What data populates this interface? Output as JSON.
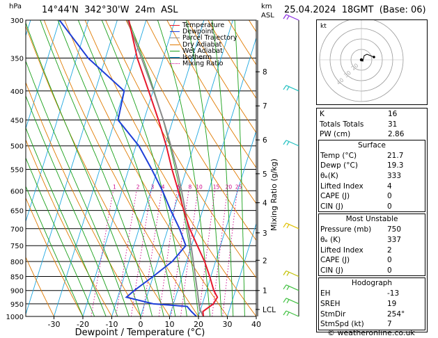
{
  "header": {
    "location": "14°44'N  342°30'W  24m  ASL",
    "datetime": "25.04.2024  18GMT  (Base: 06)",
    "pressure_unit": "hPa",
    "km_label": "km",
    "asl_label": "ASL"
  },
  "legend": [
    {
      "label": "Temperature",
      "color": "#e8182c"
    },
    {
      "label": "Dewpoint",
      "color": "#1f3fd8"
    },
    {
      "label": "Parcel Trajectory",
      "color": "#8a8a8a"
    },
    {
      "label": "Dry Adiabat",
      "color": "#e07a00"
    },
    {
      "label": "Wet Adiabat",
      "color": "#19a019"
    },
    {
      "label": "Isotherm",
      "color": "#1fa8e0"
    },
    {
      "label": "Mixing Ratio",
      "color": "#cc0088"
    }
  ],
  "chart_data": {
    "type": "line",
    "subtype": "skew-T log-P thermodynamic diagram",
    "xlabel": "Dewpoint / Temperature (°C)",
    "ylabel": "hPa",
    "right_axis_label": "Mixing Ratio (g/kg)",
    "x_ticks": [
      -30,
      -20,
      -10,
      0,
      10,
      20,
      30,
      40
    ],
    "pressure_levels": [
      300,
      350,
      400,
      450,
      500,
      550,
      600,
      650,
      700,
      750,
      800,
      850,
      900,
      950,
      1000
    ],
    "km_ticks": [
      {
        "label": "8",
        "p": 370
      },
      {
        "label": "7",
        "p": 425
      },
      {
        "label": "6",
        "p": 488
      },
      {
        "label": "5",
        "p": 560
      },
      {
        "label": "4",
        "p": 630
      },
      {
        "label": "3",
        "p": 712
      },
      {
        "label": "2",
        "p": 796
      },
      {
        "label": "1",
        "p": 900
      },
      {
        "label": "LCL",
        "p": 972
      }
    ],
    "mixing_ratio_labels": [
      "1",
      "2",
      "3",
      "4",
      "6",
      "8",
      "10",
      "15",
      "20",
      "25"
    ],
    "mixing_ratio_values": [
      1,
      2,
      3,
      4,
      6,
      8,
      10,
      15,
      20,
      25
    ],
    "temperature": [
      {
        "p": 1000,
        "t": 21.7
      },
      {
        "p": 980,
        "t": 21.0
      },
      {
        "p": 950,
        "t": 23.8
      },
      {
        "p": 925,
        "t": 24.5
      },
      {
        "p": 900,
        "t": 22.5
      },
      {
        "p": 850,
        "t": 19.6
      },
      {
        "p": 800,
        "t": 16.2
      },
      {
        "p": 750,
        "t": 12.0
      },
      {
        "p": 700,
        "t": 7.5
      },
      {
        "p": 650,
        "t": 3.5
      },
      {
        "p": 600,
        "t": -0.5
      },
      {
        "p": 550,
        "t": -5.0
      },
      {
        "p": 500,
        "t": -9.5
      },
      {
        "p": 450,
        "t": -15.0
      },
      {
        "p": 400,
        "t": -21.5
      },
      {
        "p": 350,
        "t": -29.0
      },
      {
        "p": 300,
        "t": -36.0
      }
    ],
    "dewpoint": [
      {
        "p": 1000,
        "t": 19.3
      },
      {
        "p": 980,
        "t": 17.0
      },
      {
        "p": 960,
        "t": 15.0
      },
      {
        "p": 950,
        "t": 3.0
      },
      {
        "p": 925,
        "t": -7.0
      },
      {
        "p": 900,
        "t": -5.0
      },
      {
        "p": 850,
        "t": 0.0
      },
      {
        "p": 800,
        "t": 5.0
      },
      {
        "p": 750,
        "t": 8.0
      },
      {
        "p": 700,
        "t": 4.0
      },
      {
        "p": 650,
        "t": -1.0
      },
      {
        "p": 600,
        "t": -6.0
      },
      {
        "p": 550,
        "t": -12.0
      },
      {
        "p": 500,
        "t": -19.0
      },
      {
        "p": 450,
        "t": -29.0
      },
      {
        "p": 400,
        "t": -30.0
      },
      {
        "p": 350,
        "t": -46.0
      },
      {
        "p": 300,
        "t": -60.0
      }
    ],
    "parcel": [
      {
        "p": 1000,
        "t": 21.7
      },
      {
        "p": 970,
        "t": 19.6
      },
      {
        "p": 900,
        "t": 16.8
      },
      {
        "p": 850,
        "t": 14.6
      },
      {
        "p": 800,
        "t": 12.3
      },
      {
        "p": 750,
        "t": 9.8
      },
      {
        "p": 700,
        "t": 7.0
      },
      {
        "p": 650,
        "t": 4.0
      },
      {
        "p": 600,
        "t": 0.6
      },
      {
        "p": 550,
        "t": -3.3
      },
      {
        "p": 500,
        "t": -7.9
      },
      {
        "p": 450,
        "t": -13.3
      },
      {
        "p": 400,
        "t": -19.8
      },
      {
        "p": 350,
        "t": -27.5
      },
      {
        "p": 300,
        "t": -36.5
      }
    ],
    "winds": [
      {
        "p": 300,
        "color": "#8a2be2"
      },
      {
        "p": 400,
        "color": "#20c0c0"
      },
      {
        "p": 500,
        "color": "#20c0c0"
      },
      {
        "p": 700,
        "color": "#e0c000"
      },
      {
        "p": 850,
        "color": "#c0c000"
      },
      {
        "p": 900,
        "color": "#40c040"
      },
      {
        "p": 950,
        "color": "#40c040"
      },
      {
        "p": 1000,
        "color": "#40c040"
      }
    ],
    "hodograph": {
      "label": "kt",
      "ring_labels": [
        "40",
        "30",
        "20"
      ],
      "trace": [
        [
          0,
          0
        ],
        [
          2,
          -2
        ],
        [
          4,
          6
        ],
        [
          8,
          8
        ],
        [
          18,
          4
        ]
      ]
    }
  },
  "indices": [
    {
      "label": "K",
      "value": "16"
    },
    {
      "label": "Totals Totals",
      "value": "31"
    },
    {
      "label": "PW (cm)",
      "value": "2.86"
    }
  ],
  "surface": {
    "title": "Surface",
    "rows": [
      {
        "label": "Temp (°C)",
        "value": "21.7"
      },
      {
        "label": "Dewp (°C)",
        "value": "19.3"
      },
      {
        "label": "θₑ(K)",
        "value": "333"
      },
      {
        "label": "Lifted Index",
        "value": "4"
      },
      {
        "label": "CAPE (J)",
        "value": "0"
      },
      {
        "label": "CIN (J)",
        "value": "0"
      }
    ]
  },
  "most_unstable": {
    "title": "Most Unstable",
    "rows": [
      {
        "label": "Pressure (mb)",
        "value": "750"
      },
      {
        "label": "θₑ (K)",
        "value": "337"
      },
      {
        "label": "Lifted Index",
        "value": "2"
      },
      {
        "label": "CAPE (J)",
        "value": "0"
      },
      {
        "label": "CIN (J)",
        "value": "0"
      }
    ]
  },
  "hodograph_table": {
    "title": "Hodograph",
    "rows": [
      {
        "label": "EH",
        "value": "-13"
      },
      {
        "label": "SREH",
        "value": "19"
      },
      {
        "label": "StmDir",
        "value": "254°"
      },
      {
        "label": "StmSpd (kt)",
        "value": "7"
      }
    ]
  },
  "copyright": "© weatheronline.co.uk"
}
